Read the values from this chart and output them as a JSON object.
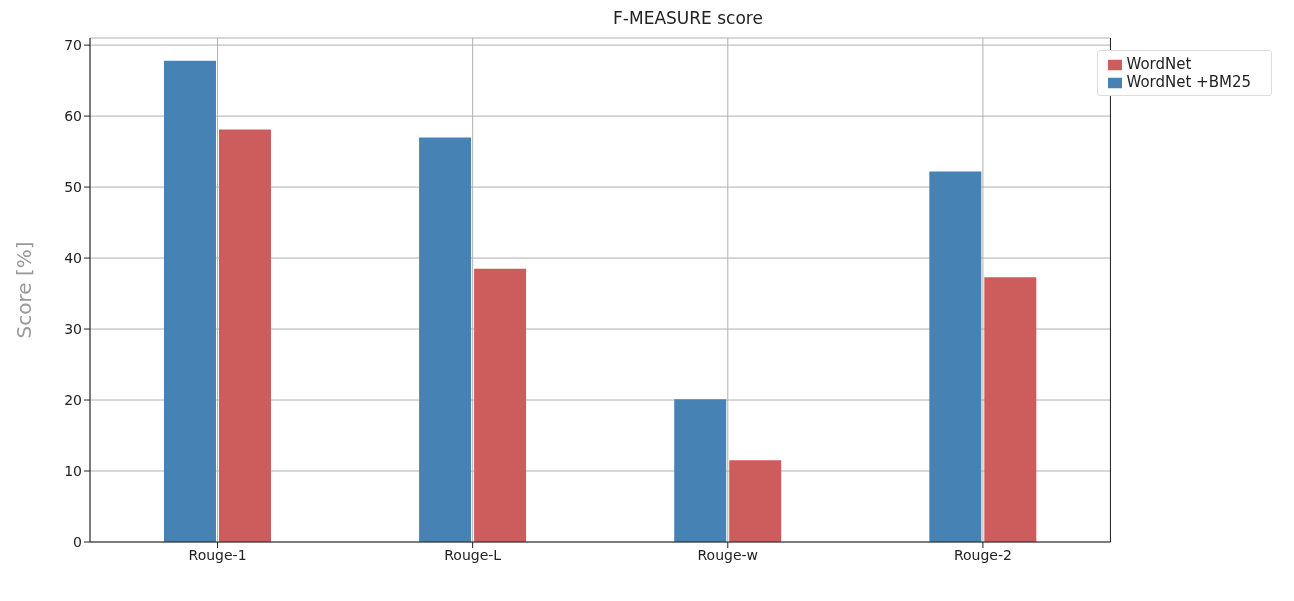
{
  "chart_data": {
    "type": "bar",
    "title": "F-MEASURE score",
    "ylabel": "Score [%]",
    "categories": [
      "Rouge-1",
      "Rouge-L",
      "Rouge-w",
      "Rouge-2"
    ],
    "series": [
      {
        "name": "WordNet +BM25",
        "color": "#4682b4",
        "values": [
          67.8,
          57.0,
          20.1,
          52.2
        ]
      },
      {
        "name": "WordNet",
        "color": "#cd5c5c",
        "values": [
          58.1,
          38.5,
          11.5,
          37.3
        ]
      }
    ],
    "ylim": [
      0,
      71
    ],
    "yticks": [
      0,
      10,
      20,
      30,
      40,
      50,
      60,
      70
    ],
    "grid": true,
    "legend": "top right"
  }
}
